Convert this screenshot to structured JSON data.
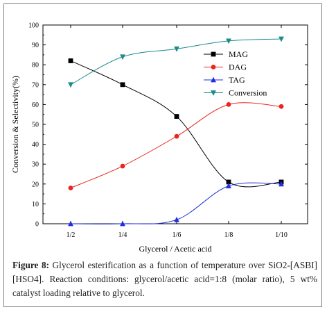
{
  "chart_data": {
    "type": "line",
    "categories": [
      "1/2",
      "1/4",
      "1/6",
      "1/8",
      "1/10"
    ],
    "xlabel": "Glycerol / Acetic acid",
    "ylabel": "Conversion & Selectivity(%)",
    "ylim": [
      0,
      100
    ],
    "yticks": [
      0,
      10,
      20,
      30,
      40,
      50,
      60,
      70,
      80,
      90,
      100
    ],
    "legend_position": "top-right",
    "series": [
      {
        "name": "MAG",
        "marker": "square",
        "color": "#000000",
        "values": [
          82,
          70,
          54,
          21,
          21
        ]
      },
      {
        "name": "DAG",
        "marker": "circle",
        "color": "#e8251f",
        "values": [
          18,
          29,
          44,
          60,
          59
        ]
      },
      {
        "name": "TAG",
        "marker": "triangle-up",
        "color": "#1f2ee0",
        "values": [
          0,
          0,
          2,
          19,
          20
        ]
      },
      {
        "name": "Conversion",
        "marker": "triangle-down",
        "color": "#1a8a8a",
        "values": [
          70,
          84,
          88,
          92,
          93
        ]
      }
    ]
  },
  "caption": {
    "label": "Figure 8:",
    "text": "Glycerol esterification as a function of temperature over SiO2-[ASBI][HSO4]. Reaction conditions: glycerol/acetic acid=1:8 (molar ratio), 5 wt% catalyst loading relative to glycerol."
  }
}
